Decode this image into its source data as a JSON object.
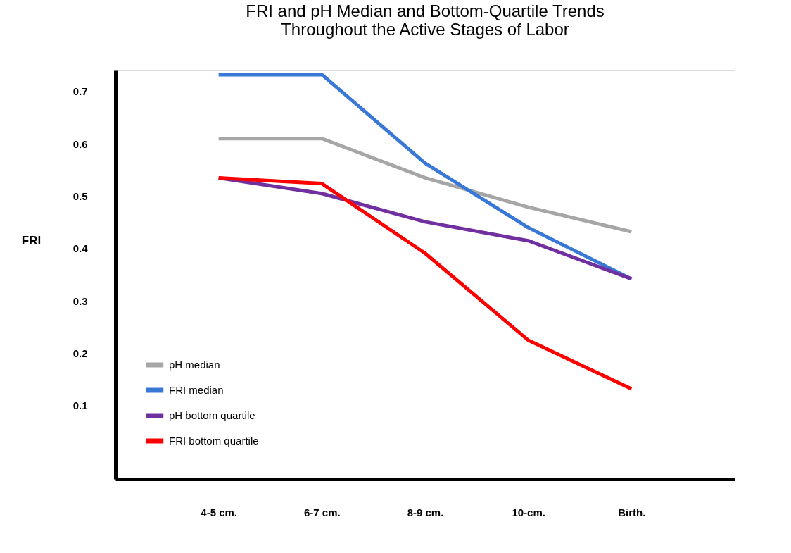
{
  "chart_data": {
    "type": "line",
    "title": "FRI and pH Median and Bottom-Quartile Trends\nThroughout the Active Stages of Labor",
    "ylabel": "FRI",
    "categories": [
      "4-5 cm.",
      "6-7 cm.",
      "8-9 cm.",
      "10-cm.",
      "Birth."
    ],
    "series": [
      {
        "name": "pH median",
        "color": "#a6a6a6",
        "values": [
          0.61,
          0.61,
          0.535,
          0.479,
          0.432
        ]
      },
      {
        "name": "FRI median",
        "color": "#3a78d8",
        "values": [
          0.732,
          0.732,
          0.563,
          0.44,
          0.342
        ]
      },
      {
        "name": "pH bottom quartile",
        "color": "#7030a0",
        "values": [
          0.535,
          0.505,
          0.451,
          0.415,
          0.342
        ]
      },
      {
        "name": "FRI bottom quartile",
        "color": "#ff0000",
        "values": [
          0.535,
          0.524,
          0.391,
          0.225,
          0.132
        ]
      }
    ],
    "ylim": [
      -0.04,
      0.74
    ],
    "yticks": [
      0.1,
      0.2,
      0.3,
      0.4,
      0.5,
      0.6,
      0.7
    ],
    "grid": false,
    "legend": "bottom left",
    "marker": "none",
    "line_style": "solid"
  }
}
